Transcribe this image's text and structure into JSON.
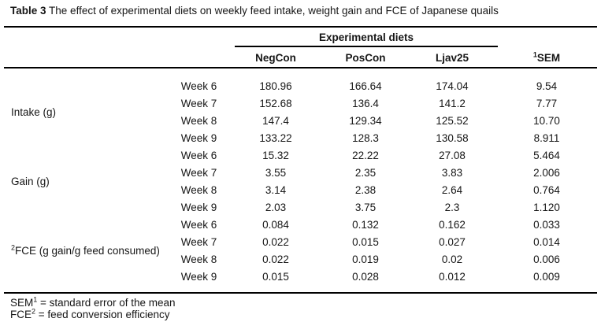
{
  "caption": {
    "label": "Table 3",
    "text": "The effect of experimental diets on weekly feed intake, weight gain and FCE of Japanese quails"
  },
  "table": {
    "spanner": "Experimental diets",
    "headers": {
      "negcon": "NegCon",
      "poscon": "PosCon",
      "ljav25": "Ljav25",
      "sem_sup": "1",
      "sem": "SEM"
    },
    "groups": [
      {
        "sup": "",
        "label": "Intake (g)",
        "rows": [
          {
            "week": "Week 6",
            "negcon": "180.96",
            "poscon": "166.64",
            "ljav25": "174.04",
            "sem": "9.54"
          },
          {
            "week": "Week 7",
            "negcon": "152.68",
            "poscon": "136.4",
            "ljav25": "141.2",
            "sem": "7.77"
          },
          {
            "week": "Week 8",
            "negcon": "147.4",
            "poscon": "129.34",
            "ljav25": "125.52",
            "sem": "10.70"
          },
          {
            "week": "Week 9",
            "negcon": "133.22",
            "poscon": "128.3",
            "ljav25": "130.58",
            "sem": "8.911"
          }
        ]
      },
      {
        "sup": "",
        "label": "Gain (g)",
        "rows": [
          {
            "week": "Week 6",
            "negcon": "15.32",
            "poscon": "22.22",
            "ljav25": "27.08",
            "sem": "5.464"
          },
          {
            "week": "Week 7",
            "negcon": "3.55",
            "poscon": "2.35",
            "ljav25": "3.83",
            "sem": "2.006"
          },
          {
            "week": "Week 8",
            "negcon": "3.14",
            "poscon": "2.38",
            "ljav25": "2.64",
            "sem": "0.764"
          },
          {
            "week": "Week 9",
            "negcon": "2.03",
            "poscon": "3.75",
            "ljav25": "2.3",
            "sem": "1.120"
          }
        ]
      },
      {
        "sup": "2",
        "label": "FCE (g gain/g feed consumed)",
        "rows": [
          {
            "week": "Week 6",
            "negcon": "0.084",
            "poscon": "0.132",
            "ljav25": "0.162",
            "sem": "0.033"
          },
          {
            "week": "Week 7",
            "negcon": "0.022",
            "poscon": "0.015",
            "ljav25": "0.027",
            "sem": "0.014"
          },
          {
            "week": "Week 8",
            "negcon": "0.022",
            "poscon": "0.019",
            "ljav25": "0.02",
            "sem": "0.006"
          },
          {
            "week": "Week 9",
            "negcon": "0.015",
            "poscon": "0.028",
            "ljav25": "0.012",
            "sem": "0.009"
          }
        ]
      }
    ]
  },
  "footnotes": [
    {
      "term": "SEM",
      "sup": "1",
      "rest": " = standard error of the mean"
    },
    {
      "term": "FCE",
      "sup": "2",
      "rest": " = feed conversion efficiency"
    }
  ]
}
